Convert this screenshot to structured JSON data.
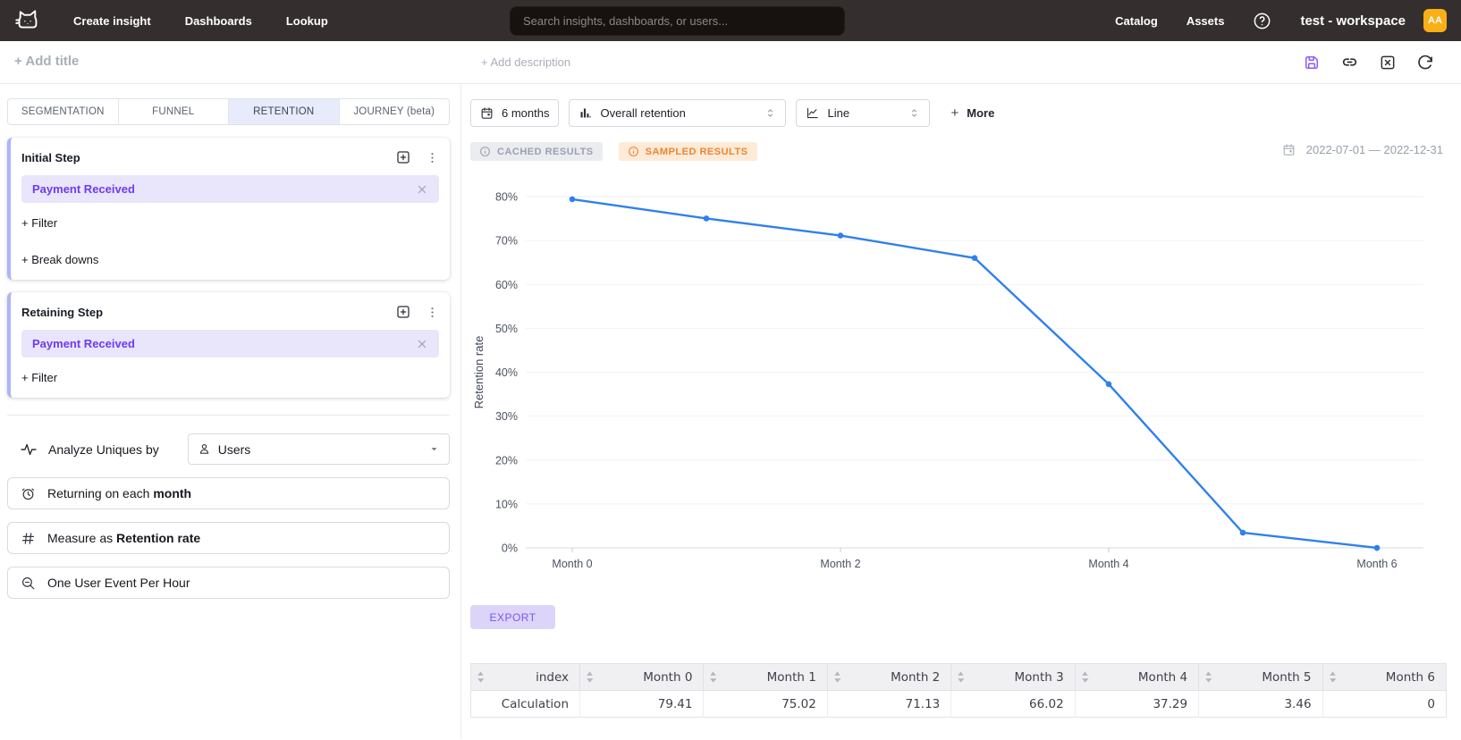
{
  "topnav": {
    "items": [
      {
        "label": "Create insight"
      },
      {
        "label": "Dashboards"
      },
      {
        "label": "Lookup"
      }
    ],
    "search_placeholder": "Search insights, dashboards, or users...",
    "right_items": [
      {
        "label": "Catalog"
      },
      {
        "label": "Assets"
      }
    ],
    "workspace_name": "test - workspace",
    "avatar_initials": "AA",
    "avatar_color": "#f9b017"
  },
  "header": {
    "add_title": "+ Add title",
    "add_description": "+ Add description"
  },
  "left_panel": {
    "tabs": [
      {
        "label": "SEGMENTATION",
        "active": false
      },
      {
        "label": "FUNNEL",
        "active": false
      },
      {
        "label": "RETENTION",
        "active": true
      },
      {
        "label": "JOURNEY (beta)",
        "active": false
      }
    ],
    "initial_step": {
      "title": "Initial Step",
      "event": "Payment Received",
      "filter_label": "+ Filter",
      "breakdowns_label": "+ Break downs"
    },
    "retaining_step": {
      "title": "Retaining Step",
      "event": "Payment Received",
      "filter_label": "+ Filter"
    },
    "analyze": {
      "label": "Analyze Uniques by",
      "value": "Users"
    },
    "options": [
      {
        "prefix": "Returning on each ",
        "bold": "month"
      },
      {
        "prefix": "Measure as ",
        "bold": "Retention rate"
      },
      {
        "prefix": "One User Event Per Hour",
        "bold": ""
      }
    ]
  },
  "toolbar": {
    "date_button": "6 months",
    "metric_select": "Overall retention",
    "chart_type_select": "Line",
    "more_plus": "+",
    "more_label": "More"
  },
  "badges": {
    "cached": "CACHED RESULTS",
    "sampled": "SAMPLED RESULTS"
  },
  "date_range": "2022-07-01 — 2022-12-31",
  "export_label": "EXPORT",
  "accent_colors": {
    "purple": "#6d3cf0",
    "line_blue": "#2f80ed",
    "sampled_orange": "#ef8330"
  },
  "chart_data": {
    "type": "line",
    "title": "",
    "series_name": "Calculation",
    "x": [
      "Month 0",
      "Month 1",
      "Month 2",
      "Month 3",
      "Month 4",
      "Month 5",
      "Month 6"
    ],
    "values": [
      79.41,
      75.02,
      71.13,
      66.02,
      37.29,
      3.46,
      0
    ],
    "ylabel": "Retention rate",
    "xlabel": "",
    "ylim": [
      0,
      85
    ],
    "yticks": [
      0,
      10,
      20,
      30,
      40,
      50,
      60,
      70,
      80
    ],
    "ytick_suffix": "%",
    "x_tick_indices": [
      0,
      2,
      4,
      6
    ],
    "grid": true,
    "legend": "none",
    "color": "#2f80ed"
  },
  "table": {
    "columns": [
      "index",
      "Month 0",
      "Month 1",
      "Month 2",
      "Month 3",
      "Month 4",
      "Month 5",
      "Month 6"
    ],
    "rows": [
      [
        "Calculation",
        "79.41",
        "75.02",
        "71.13",
        "66.02",
        "37.29",
        "3.46",
        "0"
      ]
    ]
  }
}
